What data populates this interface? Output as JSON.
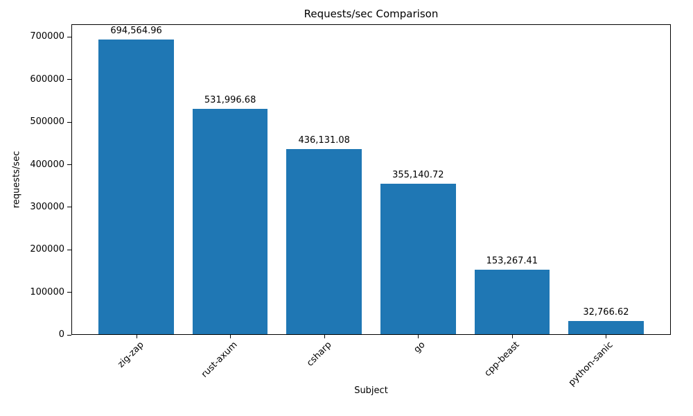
{
  "chart_data": {
    "type": "bar",
    "title": "Requests/sec Comparison",
    "xlabel": "Subject",
    "ylabel": "requests/sec",
    "categories": [
      "zig-zap",
      "rust-axum",
      "csharp",
      "go",
      "cpp-beast",
      "python-sanic"
    ],
    "values": [
      694564.96,
      531996.68,
      436131.08,
      355140.72,
      153267.41,
      32766.62
    ],
    "bar_labels": [
      "694,564.96",
      "531,996.68",
      "436,131.08",
      "355,140.72",
      "153,267.41",
      "32,766.62"
    ],
    "yticks": [
      0,
      100000,
      200000,
      300000,
      400000,
      500000,
      600000,
      700000
    ],
    "ytick_labels": [
      "0",
      "100000",
      "200000",
      "300000",
      "400000",
      "500000",
      "600000",
      "700000"
    ],
    "ylim": [
      0,
      730000
    ],
    "xlim": [
      -0.69,
      5.69
    ],
    "bar_width_units": 0.8,
    "x_tick_rotation": 45,
    "grid": false,
    "legend": null,
    "bar_color": "#1f77b4",
    "axis_color": "#000000",
    "text_color": "#000000",
    "background": "#ffffff"
  }
}
